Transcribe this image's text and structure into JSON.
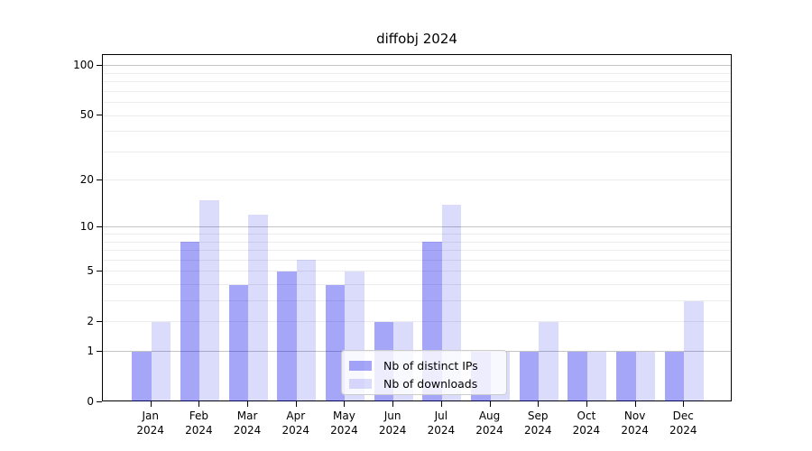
{
  "chart_data": {
    "type": "bar",
    "title": "diffobj 2024",
    "categories": [
      "Jan",
      "Feb",
      "Mar",
      "Apr",
      "May",
      "Jun",
      "Jul",
      "Aug",
      "Sep",
      "Oct",
      "Nov",
      "Dec"
    ],
    "category_year": "2024",
    "series": [
      {
        "name": "Nb of distinct IPs",
        "color": "rgba(0,0,235,0.35)",
        "values": [
          1,
          8,
          4,
          5,
          4,
          2,
          8,
          1,
          1,
          1,
          1,
          1
        ]
      },
      {
        "name": "Nb of downloads",
        "color": "rgba(0,0,235,0.14)",
        "values": [
          2,
          15,
          12,
          6,
          5,
          2,
          14,
          1,
          2,
          1,
          1,
          3
        ]
      }
    ],
    "xlabel": "",
    "ylabel": "",
    "yscale": "log1p",
    "ylim": [
      0,
      116
    ],
    "yticks": [
      0,
      1,
      2,
      5,
      10,
      20,
      50,
      100
    ],
    "major_gridlines": [
      1,
      10,
      100
    ],
    "minor_gridlines": [
      2,
      3,
      4,
      5,
      6,
      7,
      8,
      9,
      20,
      30,
      40,
      50,
      60,
      70,
      80,
      90
    ],
    "grid": true,
    "legend_position": "lower center",
    "colors": {
      "major_grid": "#c4c4c4",
      "minor_grid": "#ececec",
      "axis": "#000000",
      "legend_border": "#cccccc"
    }
  }
}
